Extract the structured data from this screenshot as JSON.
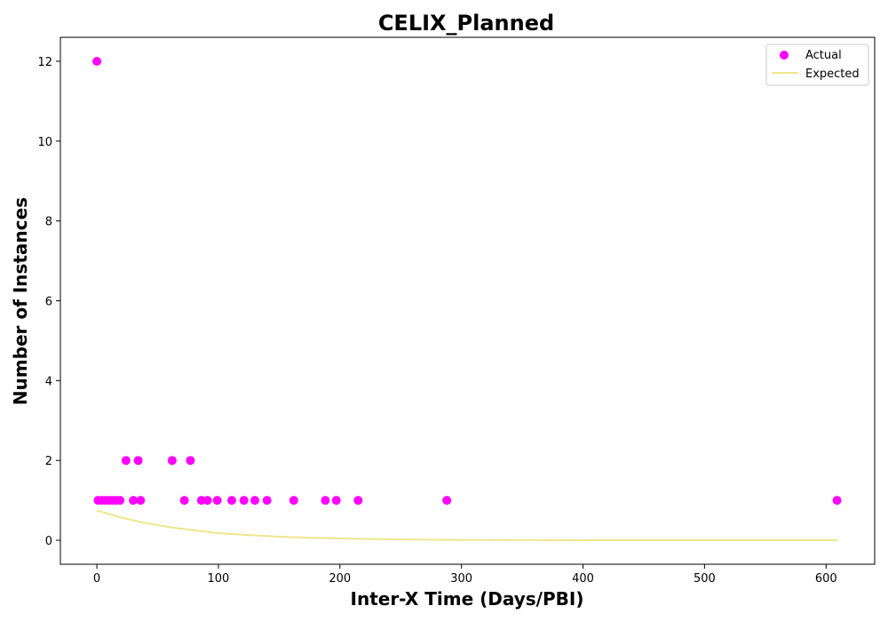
{
  "chart_data": {
    "type": "scatter",
    "title": "CELIX_Planned",
    "xlabel": "Inter-X Time (Days/PBI)",
    "ylabel": "Number of Instances",
    "xlim": [
      -30,
      640
    ],
    "ylim": [
      -0.6,
      12.6
    ],
    "xticks": [
      0,
      100,
      200,
      300,
      400,
      500,
      600
    ],
    "yticks": [
      0,
      2,
      4,
      6,
      8,
      10,
      12
    ],
    "grid": false,
    "legend": "top-right",
    "series": [
      {
        "name": "Actual",
        "kind": "scatter",
        "color": "#ff00ff",
        "points": [
          [
            0,
            12
          ],
          [
            1,
            1
          ],
          [
            4,
            1
          ],
          [
            7,
            1
          ],
          [
            10,
            1
          ],
          [
            13,
            1
          ],
          [
            16,
            1
          ],
          [
            19,
            1
          ],
          [
            24,
            2
          ],
          [
            30,
            1
          ],
          [
            34,
            2
          ],
          [
            36,
            1
          ],
          [
            62,
            2
          ],
          [
            72,
            1
          ],
          [
            77,
            2
          ],
          [
            86,
            1
          ],
          [
            91,
            1
          ],
          [
            99,
            1
          ],
          [
            111,
            1
          ],
          [
            121,
            1
          ],
          [
            130,
            1
          ],
          [
            140,
            1
          ],
          [
            162,
            1
          ],
          [
            188,
            1
          ],
          [
            197,
            1
          ],
          [
            215,
            1
          ],
          [
            288,
            1
          ],
          [
            609,
            1
          ]
        ]
      },
      {
        "name": "Expected",
        "kind": "line",
        "color": "#f0e68c",
        "points": [
          [
            0,
            0.75
          ],
          [
            20,
            0.57
          ],
          [
            40,
            0.43
          ],
          [
            60,
            0.33
          ],
          [
            80,
            0.25
          ],
          [
            100,
            0.18
          ],
          [
            120,
            0.14
          ],
          [
            150,
            0.09
          ],
          [
            180,
            0.06
          ],
          [
            210,
            0.04
          ],
          [
            250,
            0.02
          ],
          [
            300,
            0.01
          ],
          [
            400,
            0.002
          ],
          [
            500,
            0.0005
          ],
          [
            610,
            0.0001
          ]
        ]
      }
    ]
  }
}
